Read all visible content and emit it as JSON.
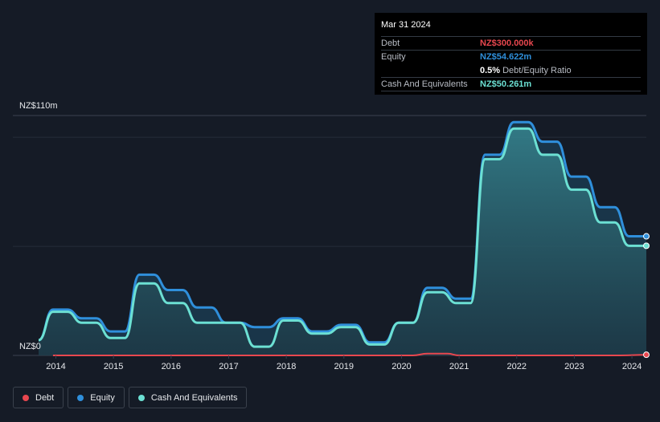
{
  "tooltip": {
    "date": "Mar 31 2024",
    "debt_label": "Debt",
    "debt_value": "NZ$300.000k",
    "equity_label": "Equity",
    "equity_value": "NZ$54.622m",
    "ratio_value": "0.5%",
    "ratio_label": "Debt/Equity Ratio",
    "cash_label": "Cash And Equivalents",
    "cash_value": "NZ$50.261m"
  },
  "legend": [
    {
      "label": "Debt",
      "color": "#e8474f"
    },
    {
      "label": "Equity",
      "color": "#2f8fdb"
    },
    {
      "label": "Cash And Equivalents",
      "color": "#6ce0d3"
    }
  ],
  "chart_data": {
    "type": "area",
    "ylabel_top": "NZ$110m",
    "ylabel_bottom": "NZ$0",
    "ylim": [
      0,
      110
    ],
    "xlim": [
      2013.7,
      2024.25
    ],
    "x_ticks": [
      "2014",
      "2015",
      "2016",
      "2017",
      "2018",
      "2019",
      "2020",
      "2021",
      "2022",
      "2023",
      "2024"
    ],
    "grid": true,
    "series": [
      {
        "name": "Equity",
        "color": "#2f8fdb",
        "x": [
          2013.7,
          2013.95,
          2014.2,
          2014.45,
          2014.7,
          2014.95,
          2015.2,
          2015.45,
          2015.7,
          2015.95,
          2016.2,
          2016.45,
          2016.7,
          2016.95,
          2017.2,
          2017.45,
          2017.7,
          2017.95,
          2018.2,
          2018.45,
          2018.7,
          2018.95,
          2019.2,
          2019.45,
          2019.7,
          2019.95,
          2020.2,
          2020.45,
          2020.7,
          2020.95,
          2021.2,
          2021.45,
          2021.7,
          2021.95,
          2022.2,
          2022.45,
          2022.7,
          2022.95,
          2023.2,
          2023.45,
          2023.7,
          2023.95,
          2024.25
        ],
        "values": [
          7,
          21,
          21,
          17,
          17,
          11,
          11,
          37,
          37,
          30,
          30,
          22,
          22,
          15,
          15,
          13,
          13,
          17,
          17,
          11,
          11,
          14,
          14,
          6,
          6,
          15,
          15,
          31,
          31,
          26,
          26,
          92,
          92,
          107,
          107,
          98,
          98,
          82,
          82,
          68,
          68,
          54.622,
          54.622
        ]
      },
      {
        "name": "Cash And Equivalents",
        "color": "#6ce0d3",
        "x": [
          2013.7,
          2013.95,
          2014.2,
          2014.45,
          2014.7,
          2014.95,
          2015.2,
          2015.45,
          2015.7,
          2015.95,
          2016.2,
          2016.45,
          2016.7,
          2016.95,
          2017.2,
          2017.45,
          2017.7,
          2017.95,
          2018.2,
          2018.45,
          2018.7,
          2018.95,
          2019.2,
          2019.45,
          2019.7,
          2019.95,
          2020.2,
          2020.45,
          2020.7,
          2020.95,
          2021.2,
          2021.45,
          2021.7,
          2021.95,
          2022.2,
          2022.45,
          2022.7,
          2022.95,
          2023.2,
          2023.45,
          2023.7,
          2023.95,
          2024.25
        ],
        "values": [
          7,
          20,
          20,
          15,
          15,
          8,
          8,
          33,
          33,
          24,
          24,
          15,
          15,
          15,
          15,
          4,
          4,
          16,
          16,
          10,
          10,
          13,
          13,
          5,
          5,
          15,
          15,
          29,
          29,
          24,
          24,
          90,
          90,
          104,
          104,
          92,
          92,
          76,
          76,
          61,
          61,
          50.261,
          50.261
        ]
      },
      {
        "name": "Debt",
        "color": "#e8474f",
        "x": [
          2013.95,
          2020.2,
          2020.45,
          2020.8,
          2021.0,
          2023.8,
          2024.25
        ],
        "values": [
          0,
          0,
          0.8,
          0.8,
          0,
          0,
          0.3
        ]
      }
    ]
  }
}
